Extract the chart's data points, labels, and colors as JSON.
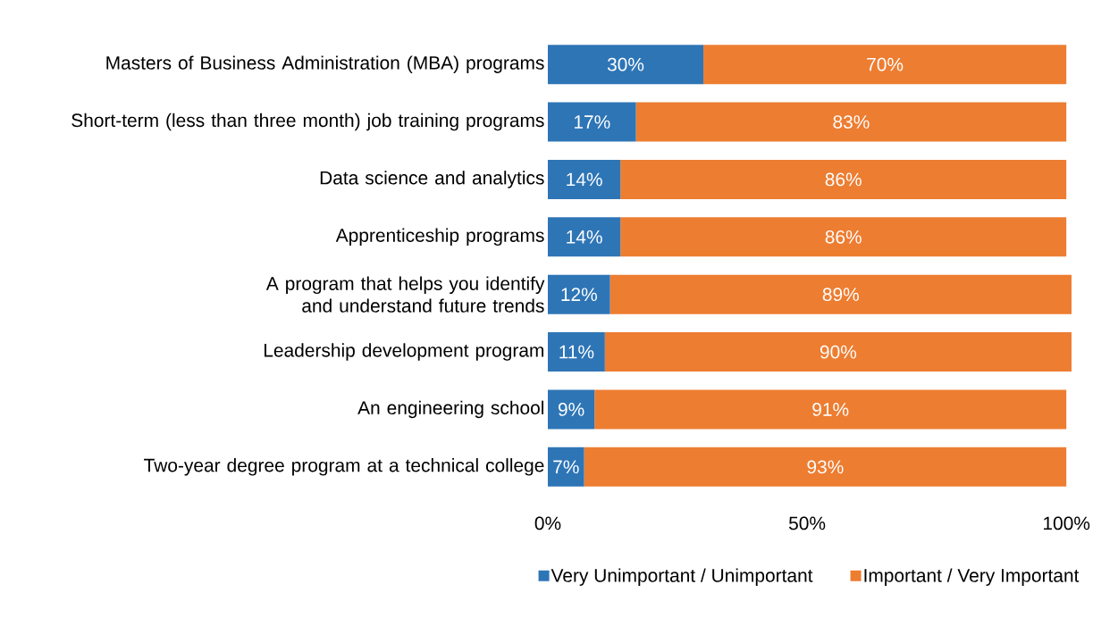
{
  "chart_data": {
    "type": "bar",
    "orientation": "horizontal",
    "stacked": true,
    "categories": [
      "Masters of Business Administration (MBA) programs",
      "Short-term (less than three month) job training programs",
      "Data science and analytics",
      "Apprenticeship programs",
      "A program that helps you identify and understand future trends",
      "Leadership development program",
      "An engineering school",
      "Two-year degree program at a technical college"
    ],
    "series": [
      {
        "name": "Very Unimportant / Unimportant",
        "color": "#2e75b6",
        "values": [
          30,
          17,
          14,
          14,
          12,
          11,
          9,
          7
        ],
        "value_labels": [
          "30%",
          "17%",
          "14%",
          "14%",
          "12%",
          "11%",
          "9%",
          "7%"
        ]
      },
      {
        "name": "Important / Very Important",
        "color": "#ed7d31",
        "values": [
          70,
          83,
          86,
          86,
          89,
          90,
          91,
          93
        ],
        "value_labels": [
          "70%",
          "83%",
          "86%",
          "86%",
          "89%",
          "90%",
          "91%",
          "93%"
        ]
      }
    ],
    "xlim": [
      0,
      101
    ],
    "xticks": [
      {
        "value": 0,
        "label": "0%"
      },
      {
        "value": 50,
        "label": "50%"
      },
      {
        "value": 100,
        "label": "100%"
      }
    ],
    "grid": false,
    "legend": "bottom"
  }
}
